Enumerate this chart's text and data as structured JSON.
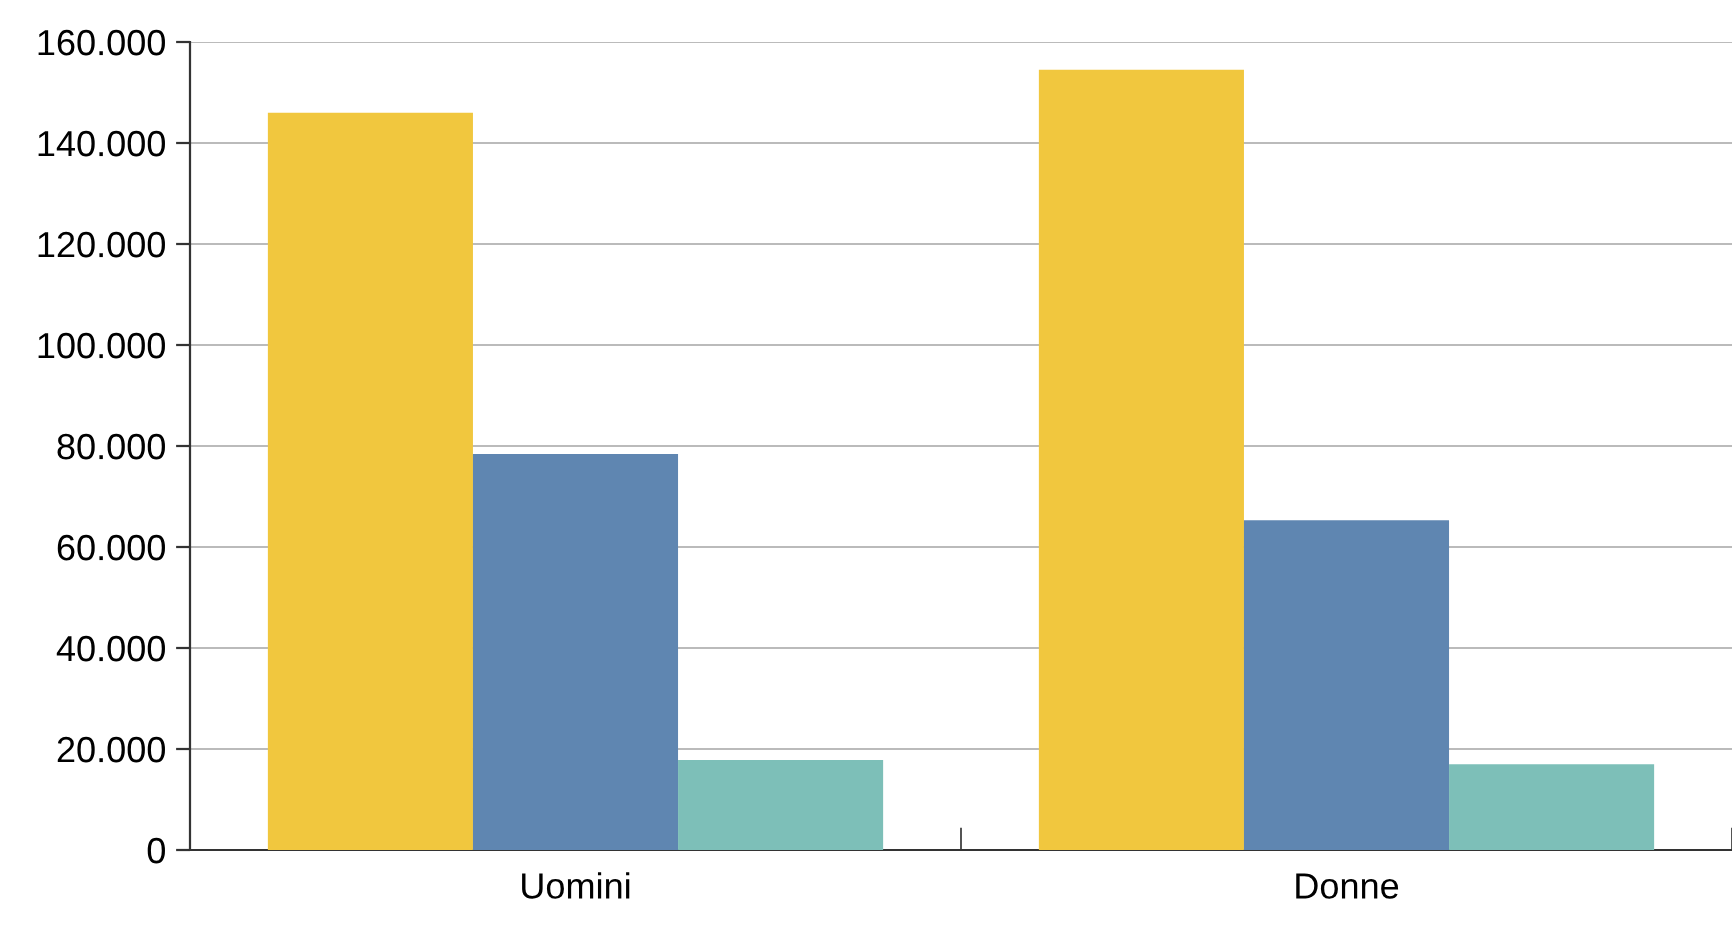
{
  "chart_data": {
    "type": "bar",
    "categories": [
      "Uomini",
      "Donne"
    ],
    "series": [
      {
        "color": "#f1c73e",
        "values": [
          146000,
          154500
        ]
      },
      {
        "color": "#5f86b1",
        "values": [
          78400,
          65300
        ]
      },
      {
        "color": "#7dbfb8",
        "values": [
          17800,
          17000
        ]
      }
    ],
    "ylim": [
      0,
      160000
    ],
    "yticks": [
      0,
      {
        "value": 20000,
        "label": "20.000"
      },
      {
        "value": 40000,
        "label": "40.000"
      },
      {
        "value": 60000,
        "label": "60.000"
      },
      {
        "value": 80000,
        "label": "80.000"
      },
      {
        "value": 100000,
        "label": "100.000"
      },
      {
        "value": 120000,
        "label": "120.000"
      },
      {
        "value": 140000,
        "label": "140.000"
      },
      {
        "value": 160000,
        "label": "160.000"
      }
    ],
    "grid": "y",
    "legend": false
  }
}
